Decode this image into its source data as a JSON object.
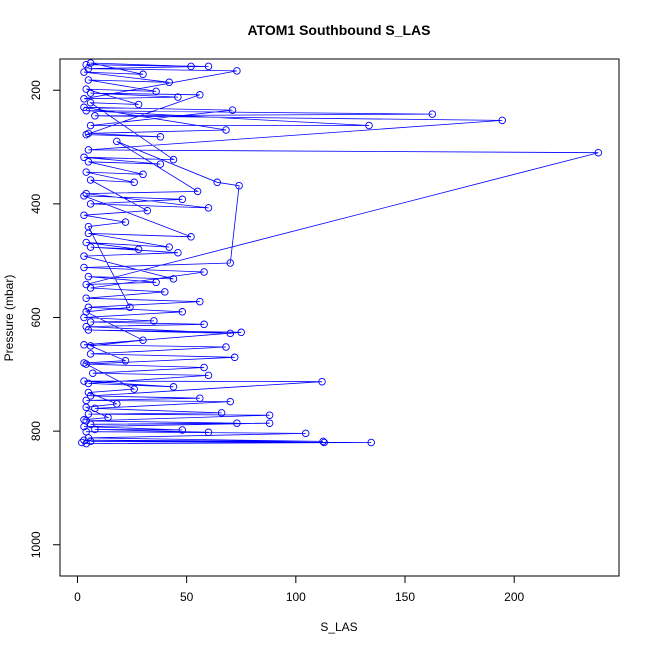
{
  "chart_data": {
    "type": "line",
    "title": "ATOM1 Southbound S_LAS",
    "xlabel": "S_LAS",
    "ylabel": "Pressure (mbar)",
    "xlim": [
      -8,
      248
    ],
    "ylim": [
      1055,
      145
    ],
    "y_reversed": true,
    "x_ticks": [
      0,
      50,
      100,
      150,
      200
    ],
    "y_ticks": [
      200,
      400,
      600,
      800,
      1000
    ],
    "grid": false,
    "marker": "open-circle",
    "series": [
      {
        "color": "#0000ff",
        "points": [
          [
            2,
            820
          ],
          [
            4,
            822
          ],
          [
            134.5,
            820
          ],
          [
            6,
            818
          ],
          [
            113,
            820
          ],
          [
            3,
            816
          ],
          [
            112.5,
            818
          ],
          [
            5,
            812
          ],
          [
            104.5,
            804
          ],
          [
            4,
            801
          ],
          [
            60,
            802
          ],
          [
            8,
            797
          ],
          [
            48,
            798
          ],
          [
            3,
            792
          ],
          [
            88,
            786
          ],
          [
            6,
            788
          ],
          [
            73,
            786
          ],
          [
            4,
            782
          ],
          [
            88,
            772
          ],
          [
            5,
            770
          ],
          [
            66,
            768
          ],
          [
            8,
            760
          ],
          [
            70,
            748
          ],
          [
            4,
            746
          ],
          [
            56,
            742
          ],
          [
            6,
            738
          ],
          [
            112,
            713
          ],
          [
            3,
            712
          ],
          [
            44,
            722
          ],
          [
            5,
            716
          ],
          [
            60,
            702
          ],
          [
            7,
            698
          ],
          [
            58,
            688
          ],
          [
            4,
            682
          ],
          [
            72,
            670
          ],
          [
            6,
            664
          ],
          [
            68,
            652
          ],
          [
            3,
            648
          ],
          [
            75,
            626
          ],
          [
            5,
            622
          ],
          [
            70,
            628
          ],
          [
            4,
            616
          ],
          [
            58,
            612
          ],
          [
            6,
            608
          ],
          [
            35,
            606
          ],
          [
            3,
            600
          ],
          [
            48,
            590
          ],
          [
            5,
            582
          ],
          [
            56,
            572
          ],
          [
            4,
            566
          ],
          [
            40,
            555
          ],
          [
            6,
            548
          ],
          [
            58,
            520
          ],
          [
            3,
            512
          ],
          [
            70,
            504
          ],
          [
            74,
            368
          ],
          [
            64,
            362
          ],
          [
            18,
            290
          ],
          [
            55,
            378
          ],
          [
            4,
            382
          ],
          [
            60,
            407
          ],
          [
            6,
            400
          ],
          [
            48,
            392
          ],
          [
            3,
            386
          ],
          [
            52,
            458
          ],
          [
            5,
            452
          ],
          [
            42,
            476
          ],
          [
            4,
            468
          ],
          [
            28,
            480
          ],
          [
            6,
            476
          ],
          [
            46,
            486
          ],
          [
            3,
            492
          ],
          [
            44,
            532
          ],
          [
            5,
            528
          ],
          [
            36,
            538
          ],
          [
            4,
            542
          ],
          [
            238.5,
            310
          ],
          [
            5,
            305
          ],
          [
            194.5,
            253
          ],
          [
            8,
            245
          ],
          [
            162.5,
            242
          ],
          [
            4,
            236
          ],
          [
            133.5,
            262
          ],
          [
            6,
            262
          ],
          [
            71,
            235
          ],
          [
            3,
            230
          ],
          [
            68,
            270
          ],
          [
            5,
            276
          ],
          [
            38,
            282
          ],
          [
            4,
            278
          ],
          [
            56,
            208
          ],
          [
            6,
            205
          ],
          [
            46,
            212
          ],
          [
            3,
            215
          ],
          [
            73,
            166
          ],
          [
            5,
            162
          ],
          [
            60,
            158
          ],
          [
            4,
            155
          ],
          [
            52,
            158
          ],
          [
            6,
            152
          ],
          [
            30,
            172
          ],
          [
            3,
            168
          ],
          [
            42,
            186
          ],
          [
            5,
            182
          ],
          [
            36,
            202
          ],
          [
            4,
            198
          ],
          [
            28,
            225
          ],
          [
            6,
            222
          ],
          [
            44,
            322
          ],
          [
            3,
            318
          ],
          [
            38,
            330
          ],
          [
            5,
            326
          ],
          [
            30,
            348
          ],
          [
            4,
            344
          ],
          [
            26,
            362
          ],
          [
            6,
            358
          ],
          [
            32,
            412
          ],
          [
            3,
            420
          ],
          [
            22,
            432
          ],
          [
            5,
            440
          ],
          [
            24,
            582
          ],
          [
            4,
            590
          ],
          [
            30,
            640
          ],
          [
            6,
            650
          ],
          [
            22,
            676
          ],
          [
            3,
            680
          ],
          [
            26,
            726
          ],
          [
            5,
            732
          ],
          [
            18,
            752
          ],
          [
            4,
            758
          ],
          [
            14,
            776
          ],
          [
            3,
            780
          ]
        ]
      }
    ]
  }
}
